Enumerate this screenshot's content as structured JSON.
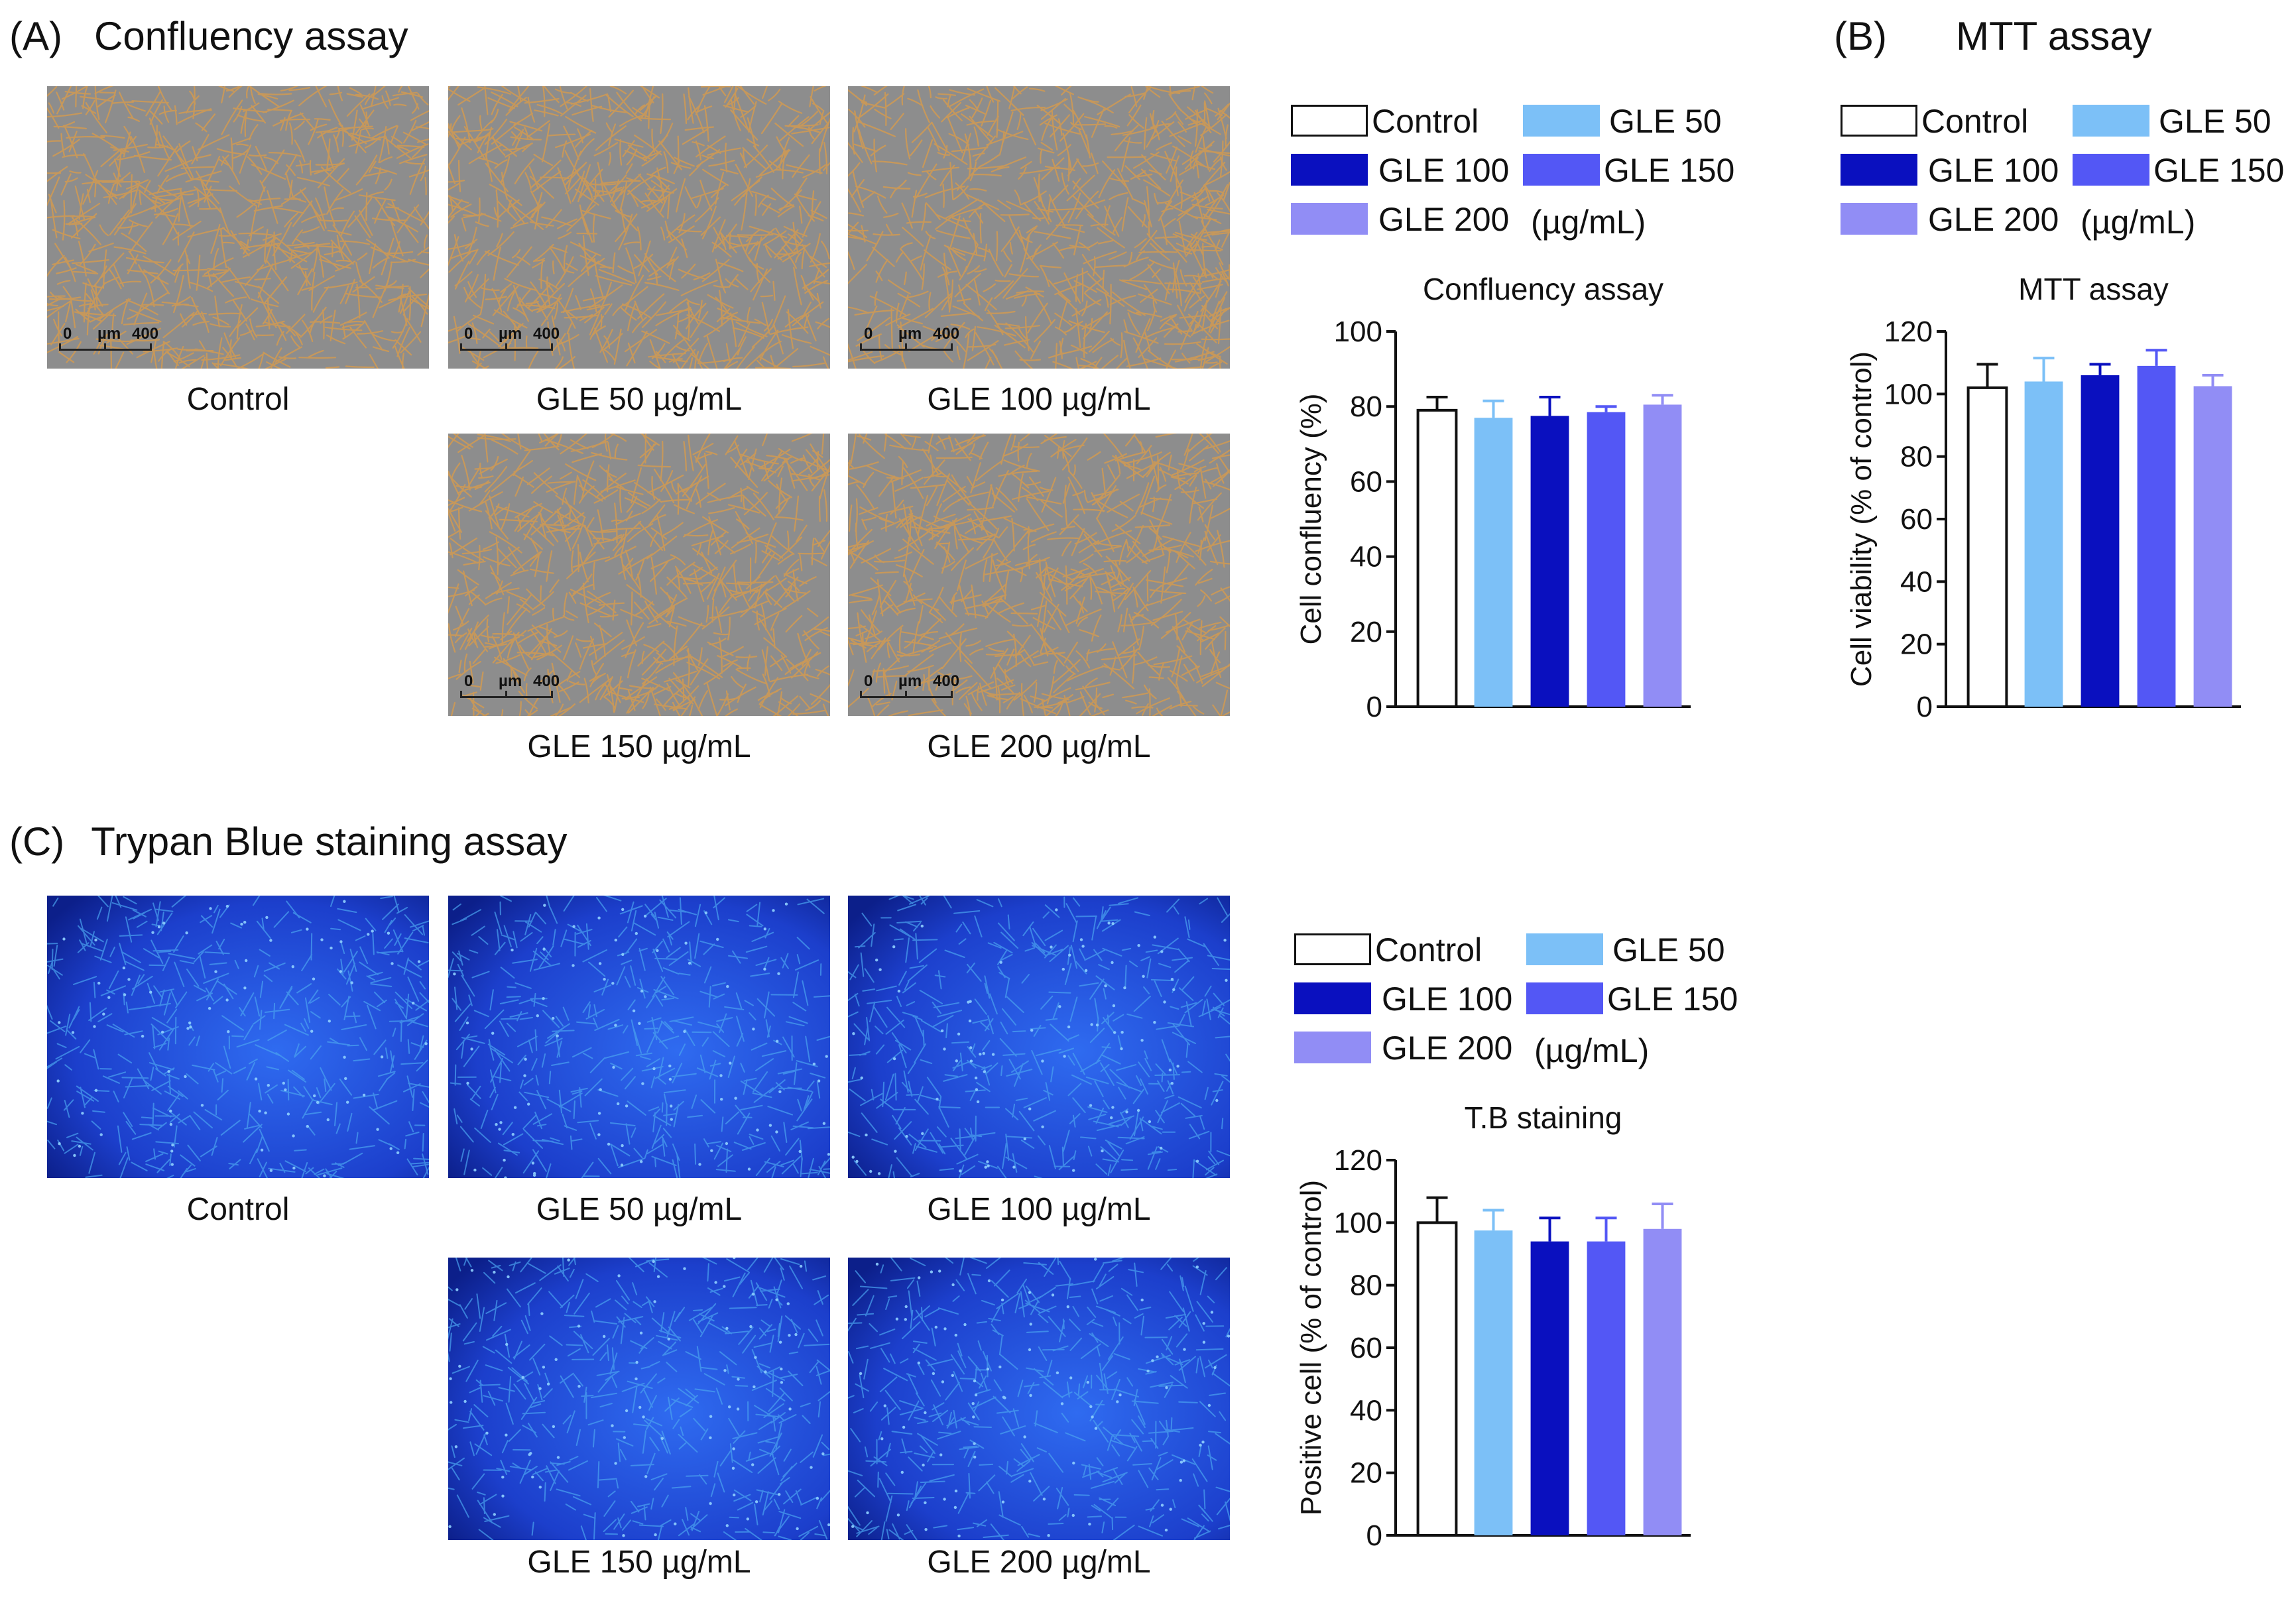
{
  "colors": {
    "control": "#ffffff",
    "gle50": "#7cc0f7",
    "gle100": "#0a10bf",
    "gle150": "#5357f5",
    "gle200": "#918df5",
    "phase_bg": "#8d8d8d",
    "cells_phase": "#d29a52",
    "trypan_bg": "#1c3fcc",
    "cells_trypan": "#4aa3f0"
  },
  "panelA": {
    "letter": "(A)",
    "title": "Confluency assay",
    "scalebar": {
      "zero": "0",
      "unit": "µm",
      "max": "400"
    },
    "captions": [
      "Control",
      "GLE 50 µg/mL",
      "GLE 100 µg/mL",
      "GLE 150 µg/mL",
      "GLE 200 µg/mL"
    ],
    "legend": {
      "items": [
        "Control",
        "GLE 50",
        "GLE 100",
        "GLE 150",
        "GLE 200"
      ],
      "unit": "(µg/mL)"
    }
  },
  "panelB": {
    "letter": "(B)",
    "title": "MTT assay",
    "legend": {
      "items": [
        "Control",
        "GLE 50",
        "GLE 100",
        "GLE 150",
        "GLE 200"
      ],
      "unit": "(µg/mL)"
    }
  },
  "panelC": {
    "letter": "(C)",
    "title": "Trypan Blue staining assay",
    "captions": [
      "Control",
      "GLE 50 µg/mL",
      "GLE 100 µg/mL",
      "GLE 150 µg/mL",
      "GLE 200 µg/mL"
    ],
    "legend": {
      "items": [
        "Control",
        "GLE 50",
        "GLE 100",
        "GLE 150",
        "GLE 200"
      ],
      "unit": "(µg/mL)"
    }
  },
  "chart_data": [
    {
      "id": "confluency",
      "type": "bar",
      "title": "Confluency assay",
      "ylabel": "Cell confluency (%)",
      "xlabel": "",
      "categories": [
        "Control",
        "GLE 50",
        "GLE 100",
        "GLE 150",
        "GLE 200"
      ],
      "values": [
        79,
        77,
        77.5,
        78.5,
        80.5
      ],
      "errors": [
        3.5,
        4.5,
        5,
        1.5,
        2.5
      ],
      "ylim": [
        0,
        100
      ],
      "yticks": [
        0,
        20,
        40,
        60,
        80,
        100
      ],
      "grid": false
    },
    {
      "id": "mtt",
      "type": "bar",
      "title": "MTT assay",
      "ylabel": "Cell viability (% of control)",
      "xlabel": "",
      "categories": [
        "Control",
        "GLE 50",
        "GLE 100",
        "GLE 150",
        "GLE 200"
      ],
      "values": [
        102,
        104,
        106,
        109,
        102.5
      ],
      "errors": [
        7.5,
        7.5,
        3.5,
        5,
        3.5
      ],
      "ylim": [
        0,
        120
      ],
      "yticks": [
        0,
        20,
        40,
        60,
        80,
        100,
        120
      ],
      "grid": false
    },
    {
      "id": "tb",
      "type": "bar",
      "title": "T.B staining",
      "ylabel": "Positive cell (% of control)",
      "xlabel": "",
      "categories": [
        "Control",
        "GLE 50",
        "GLE 100",
        "GLE 150",
        "GLE 200"
      ],
      "values": [
        100,
        97.5,
        94,
        94,
        98
      ],
      "errors": [
        8,
        6.5,
        7.5,
        7.5,
        8
      ],
      "ylim": [
        0,
        120
      ],
      "yticks": [
        0,
        20,
        40,
        60,
        80,
        100,
        120
      ],
      "grid": false
    }
  ]
}
